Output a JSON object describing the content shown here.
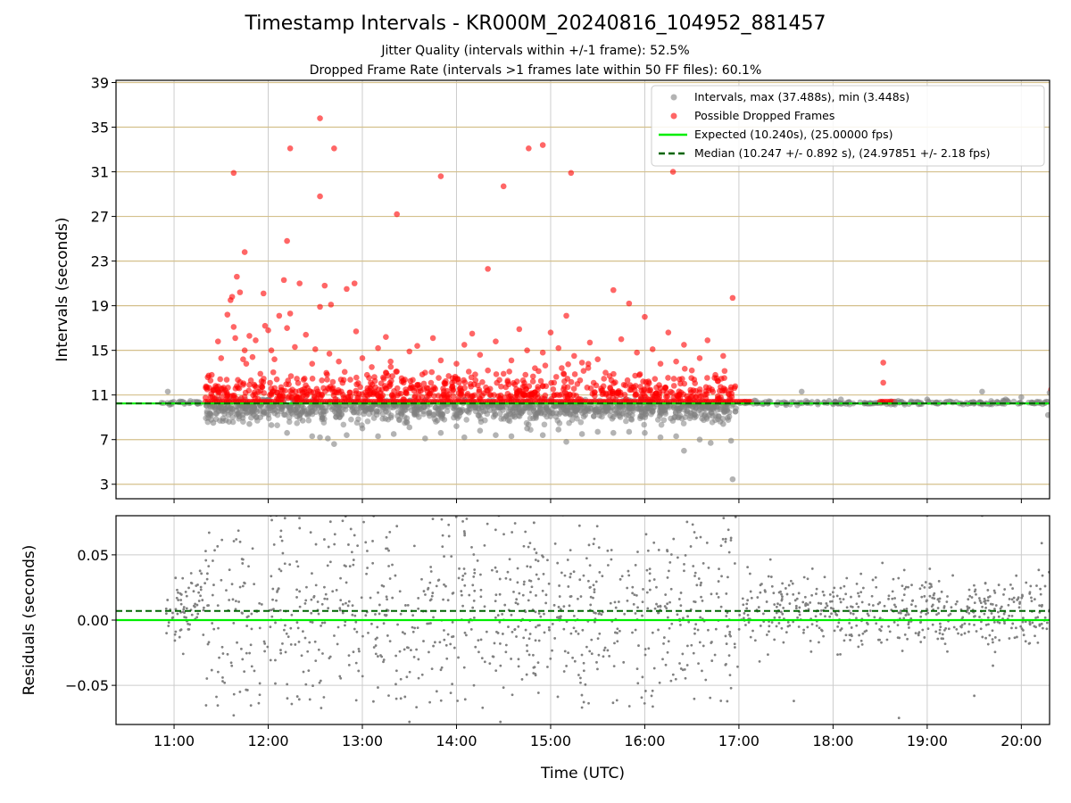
{
  "title": "Timestamp Intervals - KR000M_20240816_104952_881457",
  "subtitle_1": "Jitter Quality (intervals within +/-1 frame): 52.5%",
  "subtitle_2": "Dropped Frame Rate (intervals >1 frames late within 50 FF files): 60.1%",
  "colors": {
    "intervals": "#808080",
    "dropped": "#ff0000",
    "expected": "#00ee00",
    "median": "#006400",
    "hgrid_top": "#d4c08c",
    "grid": "#cccccc"
  },
  "chart_data": [
    {
      "type": "scatter",
      "panel": "top",
      "xlabel": "",
      "ylabel": "Intervals (seconds)",
      "x_axis": "time_utc",
      "xlim": [
        "10:23",
        "20:18"
      ],
      "ylim": [
        1.7,
        39.2
      ],
      "yticks": [
        3,
        7,
        11,
        15,
        19,
        23,
        27,
        31,
        35,
        39
      ],
      "xticks": [
        "11:00",
        "12:00",
        "13:00",
        "14:00",
        "15:00",
        "16:00",
        "17:00",
        "18:00",
        "19:00",
        "20:00"
      ],
      "grid": true,
      "legend_position": "top-right",
      "legend": [
        "Intervals, max (37.488s), min (3.448s)",
        "Possible Dropped Frames",
        "Expected (10.240s), (25.00000 fps)",
        "Median (10.247 +/- 0.892 s), (24.97851 +/- 2.18 fps)"
      ],
      "reference_lines": {
        "expected": 10.24,
        "median": 10.247
      },
      "series": [
        {
          "name": "Intervals, max (37.488s), min (3.448s)",
          "points": [
            [
              "10:52",
              10.3
            ],
            [
              "10:56",
              11.3
            ],
            [
              "11:05",
              10.4
            ],
            [
              "11:15",
              10.2
            ],
            [
              "11:22",
              9.2
            ],
            [
              "11:25",
              8.5
            ],
            [
              "11:35",
              8.6
            ],
            [
              "11:42",
              9.4
            ],
            [
              "11:48",
              8.4
            ],
            [
              "11:55",
              9.0
            ],
            [
              "12:02",
              8.3
            ],
            [
              "12:12",
              7.6
            ],
            [
              "12:22",
              8.7
            ],
            [
              "12:28",
              7.3
            ],
            [
              "12:33",
              7.2
            ],
            [
              "12:38",
              7.1
            ],
            [
              "12:42",
              6.6
            ],
            [
              "12:50",
              7.4
            ],
            [
              "13:00",
              8.0
            ],
            [
              "13:10",
              7.3
            ],
            [
              "13:20",
              7.5
            ],
            [
              "13:30",
              8.1
            ],
            [
              "13:40",
              7.1
            ],
            [
              "13:50",
              7.6
            ],
            [
              "14:00",
              8.2
            ],
            [
              "14:05",
              7.2
            ],
            [
              "14:15",
              7.8
            ],
            [
              "14:25",
              7.4
            ],
            [
              "14:35",
              7.3
            ],
            [
              "14:45",
              8.0
            ],
            [
              "14:55",
              7.4
            ],
            [
              "15:05",
              7.9
            ],
            [
              "15:10",
              6.8
            ],
            [
              "15:20",
              7.5
            ],
            [
              "15:30",
              7.7
            ],
            [
              "15:40",
              7.6
            ],
            [
              "15:50",
              7.7
            ],
            [
              "16:00",
              7.6
            ],
            [
              "16:10",
              7.2
            ],
            [
              "16:20",
              7.3
            ],
            [
              "16:25",
              6.0
            ],
            [
              "16:35",
              7.0
            ],
            [
              "16:42",
              6.7
            ],
            [
              "16:50",
              8.4
            ],
            [
              "16:55",
              6.9
            ],
            [
              "16:56",
              3.448
            ],
            [
              "16:58",
              9.8
            ],
            [
              "17:10",
              10.5
            ],
            [
              "17:20",
              10.4
            ],
            [
              "17:30",
              10.1
            ],
            [
              "17:40",
              11.3
            ],
            [
              "17:50",
              10.4
            ],
            [
              "18:05",
              10.6
            ],
            [
              "18:20",
              10.3
            ],
            [
              "18:40",
              10.4
            ],
            [
              "19:00",
              10.6
            ],
            [
              "19:15",
              10.4
            ],
            [
              "19:30",
              10.3
            ],
            [
              "19:35",
              11.3
            ],
            [
              "19:50",
              10.6
            ],
            [
              "20:00",
              10.8
            ],
            [
              "20:10",
              10.4
            ],
            [
              "20:17",
              9.2
            ],
            [
              "20:18",
              11.2
            ]
          ]
        },
        {
          "name": "Possible Dropped Frames",
          "points": [
            [
              "11:24",
              12.8
            ],
            [
              "11:28",
              15.8
            ],
            [
              "11:30",
              14.3
            ],
            [
              "11:34",
              18.2
            ],
            [
              "11:36",
              19.5
            ],
            [
              "11:39",
              16.1
            ],
            [
              "11:42",
              20.2
            ],
            [
              "11:45",
              15.0
            ],
            [
              "11:37",
              19.8
            ],
            [
              "11:38",
              17.1
            ],
            [
              "11:40",
              21.6
            ],
            [
              "11:44",
              14.2
            ],
            [
              "11:46",
              13.8
            ],
            [
              "11:48",
              16.3
            ],
            [
              "11:50",
              14.4
            ],
            [
              "11:52",
              15.9
            ],
            [
              "11:55",
              12.9
            ],
            [
              "11:58",
              17.2
            ],
            [
              "11:57",
              20.1
            ],
            [
              "12:00",
              16.8
            ],
            [
              "12:02",
              15.0
            ],
            [
              "12:04",
              14.2
            ],
            [
              "12:07",
              18.1
            ],
            [
              "12:10",
              21.3
            ],
            [
              "12:12",
              17.0
            ],
            [
              "12:14",
              18.3
            ],
            [
              "12:17",
              15.3
            ],
            [
              "12:20",
              21.0
            ],
            [
              "12:24",
              16.4
            ],
            [
              "12:28",
              13.8
            ],
            [
              "12:30",
              15.1
            ],
            [
              "12:33",
              18.9
            ],
            [
              "12:36",
              20.8
            ],
            [
              "12:39",
              14.7
            ],
            [
              "12:40",
              19.1
            ],
            [
              "12:45",
              14.0
            ],
            [
              "12:50",
              20.5
            ],
            [
              "12:56",
              16.7
            ],
            [
              "13:00",
              14.3
            ],
            [
              "13:03",
              12.8
            ],
            [
              "13:06",
              13.5
            ],
            [
              "13:10",
              15.2
            ],
            [
              "13:15",
              16.2
            ],
            [
              "13:18",
              14.0
            ],
            [
              "13:22",
              13.1
            ],
            [
              "13:25",
              12.5
            ],
            [
              "13:30",
              14.9
            ],
            [
              "13:35",
              15.4
            ],
            [
              "13:40",
              13.0
            ],
            [
              "13:45",
              16.1
            ],
            [
              "13:50",
              14.1
            ],
            [
              "13:55",
              12.7
            ],
            [
              "14:00",
              13.8
            ],
            [
              "14:05",
              15.5
            ],
            [
              "14:10",
              16.5
            ],
            [
              "14:15",
              14.6
            ],
            [
              "14:20",
              13.2
            ],
            [
              "14:25",
              15.8
            ],
            [
              "14:30",
              12.9
            ],
            [
              "14:35",
              14.1
            ],
            [
              "14:40",
              16.9
            ],
            [
              "14:45",
              15.0
            ],
            [
              "14:50",
              13.4
            ],
            [
              "14:55",
              14.8
            ],
            [
              "15:00",
              16.6
            ],
            [
              "15:05",
              15.2
            ],
            [
              "15:10",
              18.1
            ],
            [
              "15:15",
              14.5
            ],
            [
              "15:20",
              13.9
            ],
            [
              "15:25",
              15.7
            ],
            [
              "15:30",
              14.2
            ],
            [
              "15:35",
              13.0
            ],
            [
              "15:40",
              20.4
            ],
            [
              "15:45",
              16.0
            ],
            [
              "15:50",
              19.2
            ],
            [
              "15:55",
              14.8
            ],
            [
              "16:00",
              18.0
            ],
            [
              "16:05",
              15.1
            ],
            [
              "16:10",
              13.8
            ],
            [
              "16:15",
              16.6
            ],
            [
              "16:20",
              14.0
            ],
            [
              "16:25",
              15.5
            ],
            [
              "16:30",
              13.2
            ],
            [
              "16:35",
              14.3
            ],
            [
              "16:40",
              15.9
            ],
            [
              "16:45",
              12.8
            ],
            [
              "16:50",
              14.5
            ],
            [
              "16:55",
              11.7
            ],
            [
              "11:38",
              30.9
            ],
            [
              "11:45",
              23.8
            ],
            [
              "12:12",
              24.8
            ],
            [
              "12:14",
              33.1
            ],
            [
              "12:33",
              35.8
            ],
            [
              "12:33",
              28.8
            ],
            [
              "12:42",
              33.1
            ],
            [
              "12:55",
              21.0
            ],
            [
              "13:22",
              27.2
            ],
            [
              "13:50",
              30.6
            ],
            [
              "14:20",
              22.3
            ],
            [
              "14:30",
              29.7
            ],
            [
              "14:46",
              33.1
            ],
            [
              "14:55",
              33.4
            ],
            [
              "15:13",
              30.9
            ],
            [
              "16:18",
              31.0
            ],
            [
              "16:56",
              19.7
            ],
            [
              "18:32",
              13.9
            ],
            [
              "18:32",
              12.1
            ],
            [
              "20:19",
              11.5
            ]
          ]
        }
      ]
    },
    {
      "type": "scatter",
      "panel": "bottom",
      "xlabel": "Time (UTC)",
      "ylabel": "Residuals (seconds)",
      "x_axis": "time_utc",
      "xlim": [
        "10:23",
        "20:18"
      ],
      "ylim": [
        -0.08,
        0.08
      ],
      "yticks": [
        -0.05,
        0.0,
        0.05
      ],
      "ytick_labels": [
        "−0.05",
        "0.00",
        "0.05"
      ],
      "xticks": [
        "11:00",
        "12:00",
        "13:00",
        "14:00",
        "15:00",
        "16:00",
        "17:00",
        "18:00",
        "19:00",
        "20:00"
      ],
      "grid": true,
      "reference_lines": {
        "expected": 0.0,
        "median": 0.007
      },
      "series": [
        {
          "name": "Residuals",
          "points": [
            [
              "11:38",
              -0.073
            ],
            [
              "11:42",
              -0.055
            ],
            [
              "13:43",
              -0.063
            ],
            [
              "13:30",
              -0.078
            ],
            [
              "12:55",
              0.065
            ],
            [
              "13:22",
              0.072
            ],
            [
              "13:55",
              0.073
            ],
            [
              "14:05",
              0.068
            ],
            [
              "14:28",
              -0.078
            ],
            [
              "14:27",
              0.08
            ],
            [
              "15:20",
              -0.067
            ],
            [
              "16:33",
              0.063
            ],
            [
              "16:55",
              0.063
            ],
            [
              "17:35",
              -0.062
            ],
            [
              "18:42",
              -0.075
            ],
            [
              "19:00",
              0.08
            ],
            [
              "19:35",
              0.08
            ],
            [
              "19:30",
              -0.058
            ],
            [
              "20:13",
              0.059
            ]
          ]
        }
      ]
    }
  ]
}
